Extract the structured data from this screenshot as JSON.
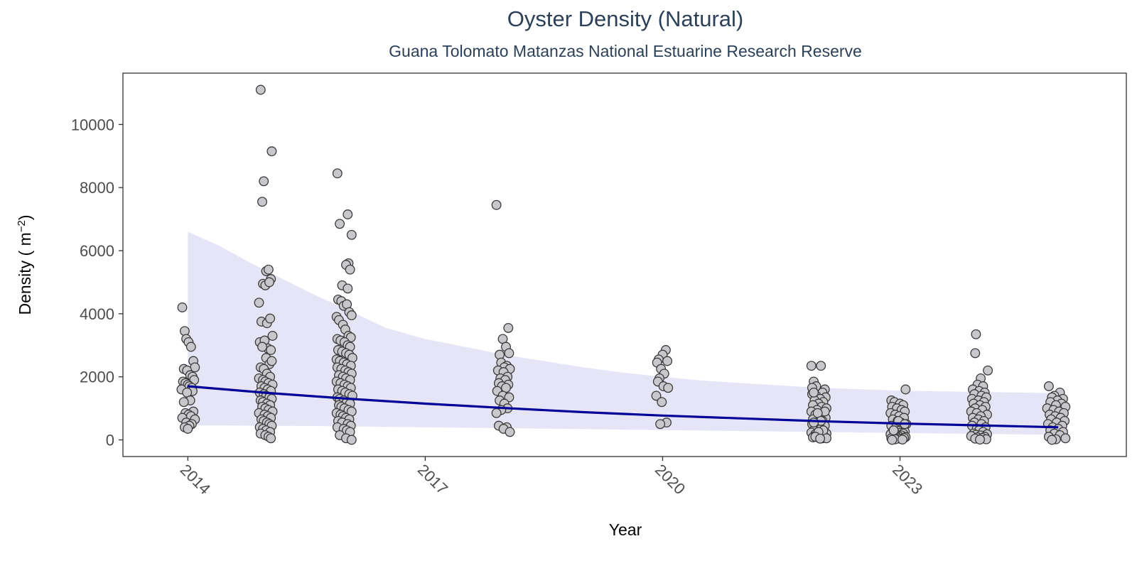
{
  "chart_data": {
    "type": "scatter",
    "title": "Oyster Density (Natural)",
    "subtitle": "Guana Tolomato Matanzas National Estuarine Research Reserve",
    "xlabel": "Year",
    "ylabel_main": "Density ( m",
    "ylabel_sup": "−2",
    "ylabel_close": ")",
    "xlim": [
      2013.18,
      2025.86
    ],
    "ylim": [
      -528,
      11630
    ],
    "x_ticks": [
      2014,
      2017,
      2020,
      2023
    ],
    "x_tick_labels": [
      "2014",
      "2017",
      "2020",
      "2023"
    ],
    "y_ticks": [
      0,
      2000,
      4000,
      6000,
      8000,
      10000
    ],
    "y_tick_labels": [
      "0",
      "2000",
      "4000",
      "6000",
      "8000",
      "10000"
    ],
    "grid": false,
    "colors": {
      "point_fill": "#c8c8cc",
      "point_stroke": "#3a3a3a",
      "trend_line": "#000099",
      "ribbon": "#e5e5f7",
      "title": "#2c4159",
      "panel_border": "#333333"
    },
    "trend": {
      "x": [
        2014,
        2015,
        2016,
        2017,
        2018,
        2019,
        2020,
        2021,
        2022,
        2023,
        2024,
        2025
      ],
      "y": [
        1700,
        1490,
        1310,
        1150,
        1010,
        880,
        770,
        680,
        590,
        520,
        460,
        400
      ]
    },
    "ribbon": {
      "x": [
        2014,
        2014.4,
        2014.8,
        2015.2,
        2015.6,
        2016,
        2016.5,
        2017,
        2017.5,
        2018,
        2018.5,
        2019,
        2019.5,
        2020,
        2020.5,
        2021,
        2022,
        2023,
        2024,
        2025
      ],
      "upper": [
        6600,
        6150,
        5600,
        5100,
        4600,
        4150,
        3550,
        3200,
        2950,
        2700,
        2500,
        2300,
        2130,
        2000,
        1880,
        1800,
        1650,
        1560,
        1520,
        1480
      ],
      "lower": [
        460,
        455,
        450,
        445,
        440,
        430,
        415,
        400,
        385,
        370,
        355,
        340,
        325,
        310,
        295,
        280,
        250,
        220,
        190,
        160
      ]
    },
    "series": [
      {
        "x": [
          2013.93,
          2013.96,
          2013.98,
          2014.01,
          2014.04,
          2014.07,
          2014.09,
          2013.95,
          2013.99,
          2014.03,
          2014.06,
          2014.08,
          2013.94,
          2013.97,
          2014.0,
          2014.02,
          2014.05,
          2013.92,
          2014.06,
          2013.99,
          2014.03,
          2013.95,
          2014.07,
          2013.97,
          2014.01,
          2014.04,
          2013.93,
          2014.09,
          2013.98,
          2014.05,
          2014.02,
          2013.96,
          2014.0
        ],
        "y": [
          4200,
          3450,
          3200,
          3100,
          2950,
          2500,
          2300,
          2250,
          2200,
          2050,
          2000,
          1900,
          1850,
          1800,
          1750,
          1700,
          1650,
          1600,
          1550,
          1500,
          1250,
          1200,
          900,
          850,
          800,
          750,
          700,
          650,
          550,
          500,
          450,
          400,
          350
        ]
      },
      {
        "x": [
          2014.92,
          2014.96,
          2015.06,
          2014.94,
          2014.99,
          2015.02,
          2015.05,
          2014.95,
          2014.98,
          2015.03,
          2014.9,
          2014.93,
          2015.0,
          2015.04,
          2015.07,
          2014.91,
          2014.97,
          2015.01,
          2015.05,
          2014.94,
          2014.99,
          2015.03,
          2015.06,
          2014.92,
          2014.96,
          2015.0,
          2015.04,
          2014.9,
          2014.95,
          2014.98,
          2015.02,
          2015.07,
          2014.93,
          2014.97,
          2015.01,
          2015.05,
          2014.91,
          2014.96,
          2014.99,
          2015.03,
          2015.06,
          2014.92,
          2014.95,
          2015.0,
          2015.04,
          2014.94,
          2014.98,
          2015.02,
          2015.07,
          2014.9,
          2014.97,
          2015.01,
          2015.05,
          2014.93,
          2014.96,
          2015.0,
          2015.03,
          2015.06,
          2014.91,
          2014.95,
          2014.99,
          2015.04,
          2014.92,
          2014.98,
          2015.02,
          2015.05
        ],
        "y": [
          11100,
          8200,
          9150,
          7550,
          5350,
          5400,
          5100,
          4950,
          4900,
          5000,
          4350,
          3750,
          3700,
          3850,
          3300,
          3100,
          3150,
          2900,
          2850,
          2950,
          2600,
          2400,
          2500,
          2300,
          2250,
          2100,
          2000,
          1950,
          1900,
          1850,
          1800,
          1750,
          1700,
          1650,
          1600,
          1550,
          1500,
          1450,
          1400,
          1350,
          1300,
          1250,
          1200,
          1150,
          1100,
          1050,
          1000,
          950,
          900,
          850,
          800,
          750,
          700,
          650,
          600,
          550,
          500,
          450,
          400,
          350,
          300,
          250,
          200,
          150,
          100,
          50
        ]
      },
      {
        "x": [
          2015.89,
          2015.92,
          2016.02,
          2016.07,
          2016.03,
          2016.0,
          2016.05,
          2015.95,
          2016.02,
          2015.9,
          2015.94,
          2015.97,
          2016.01,
          2016.04,
          2016.07,
          2015.88,
          2015.91,
          2015.96,
          2015.99,
          2016.03,
          2016.06,
          2015.89,
          2015.93,
          2015.98,
          2016.02,
          2016.05,
          2015.9,
          2015.95,
          2016.0,
          2016.04,
          2016.08,
          2015.88,
          2015.92,
          2015.97,
          2016.01,
          2016.06,
          2015.89,
          2015.94,
          2015.99,
          2016.03,
          2016.07,
          2015.91,
          2015.96,
          2016.0,
          2016.05,
          2015.88,
          2015.93,
          2015.98,
          2016.02,
          2016.06,
          2015.9,
          2015.95,
          2015.99,
          2016.04,
          2016.08,
          2015.89,
          2015.92,
          2015.97,
          2016.01,
          2016.05,
          2015.91,
          2015.94,
          2015.98,
          2016.03,
          2016.07,
          2015.88,
          2015.93,
          2015.96,
          2016.0,
          2016.04,
          2015.9,
          2015.95,
          2016.02,
          2016.06,
          2015.89,
          2015.97,
          2016.01,
          2016.05,
          2015.92,
          2016.0,
          2016.07
        ],
        "y": [
          8450,
          6850,
          7150,
          6500,
          5600,
          5550,
          5400,
          4900,
          4800,
          4450,
          4400,
          4250,
          4300,
          4050,
          3950,
          3900,
          3800,
          3650,
          3500,
          3300,
          3250,
          3200,
          3150,
          3100,
          3000,
          2950,
          2850,
          2800,
          2750,
          2700,
          2600,
          2550,
          2500,
          2450,
          2400,
          2350,
          2300,
          2250,
          2200,
          2150,
          2100,
          2050,
          2000,
          1950,
          1900,
          1850,
          1800,
          1750,
          1700,
          1650,
          1600,
          1550,
          1500,
          1450,
          1400,
          1350,
          1300,
          1250,
          1200,
          1150,
          1100,
          1050,
          1000,
          950,
          900,
          850,
          800,
          750,
          700,
          650,
          600,
          550,
          500,
          450,
          400,
          350,
          300,
          250,
          150,
          50,
          0
        ]
      },
      {
        "x": [
          2017.9,
          2018.05,
          2017.98,
          2018.02,
          2018.06,
          2017.94,
          2017.96,
          2018.03,
          2018.0,
          2018.07,
          2017.92,
          2017.99,
          2018.04,
          2017.95,
          2018.01,
          2017.93,
          2018.05,
          2017.97,
          2018.02,
          2017.91,
          2017.98,
          2018.06,
          2017.94,
          2018.0,
          2018.04,
          2017.96,
          2017.9,
          2017.93,
          2018.03,
          2017.99,
          2018.07
        ],
        "y": [
          7450,
          3550,
          3200,
          2950,
          2750,
          2700,
          2450,
          2350,
          2300,
          2250,
          2200,
          2150,
          2000,
          1950,
          1900,
          1800,
          1750,
          1700,
          1650,
          1550,
          1400,
          1350,
          1250,
          1150,
          1000,
          950,
          850,
          450,
          400,
          350,
          250
        ]
      },
      {
        "x": [
          2020.04,
          2020.0,
          2019.95,
          2020.06,
          2019.93,
          2019.98,
          2020.02,
          2019.96,
          2019.94,
          2020.01,
          2020.07,
          2019.92,
          2019.99,
          2020.05,
          2019.97
        ],
        "y": [
          2850,
          2700,
          2550,
          2500,
          2450,
          2250,
          2100,
          1950,
          1850,
          1700,
          1650,
          1400,
          1200,
          550,
          500
        ]
      },
      {
        "x": [
          2021.88,
          2022.0,
          2021.91,
          2022.05,
          2021.96,
          2022.02,
          2021.89,
          2021.94,
          2022.06,
          2021.99,
          2021.92,
          2022.03,
          2021.97,
          2021.9,
          2022.01,
          2022.07,
          2021.95,
          2021.88,
          2022.04,
          2021.93,
          2021.98,
          2022.06,
          2021.9,
          2022.02,
          2021.96,
          2021.89,
          2022.05,
          2021.94,
          2022.0,
          2021.91,
          2022.03,
          2021.97,
          2021.88,
          2022.07,
          2021.93,
          2022.01,
          2021.99,
          2021.92,
          2022.04,
          2021.95,
          2021.9,
          2022.06,
          2021.98,
          2022.02,
          2021.94,
          2021.89,
          2022.05,
          2021.96,
          2022.0,
          2021.91,
          2022.03,
          2021.97,
          2021.93,
          2022.07,
          2021.99
        ],
        "y": [
          2350,
          2350,
          1850,
          1600,
          1550,
          1500,
          1450,
          1400,
          1350,
          1300,
          1250,
          1200,
          1150,
          1100,
          1050,
          1000,
          950,
          900,
          850,
          800,
          750,
          700,
          650,
          600,
          550,
          500,
          450,
          400,
          350,
          300,
          280,
          250,
          230,
          200,
          180,
          150,
          130,
          110,
          100,
          90,
          80,
          70,
          60,
          50,
          1700,
          1650,
          900,
          850,
          600,
          550,
          300,
          250,
          100,
          50,
          40
        ]
      },
      {
        "x": [
          2023.07,
          2021.91,
          2022.89,
          2022.93,
          2023.0,
          2023.04,
          2022.9,
          2022.96,
          2023.02,
          2023.06,
          2022.88,
          2022.94,
          2022.99,
          2023.05,
          2022.91,
          2022.97,
          2023.01,
          2023.08,
          2022.89,
          2022.95,
          2023.03,
          2022.92,
          2022.98,
          2023.06,
          2022.9,
          2023.0,
          2023.04,
          2022.88,
          2022.96,
          2023.02,
          2022.93,
          2022.99,
          2023.07,
          2022.91,
          2022.97,
          2023.05,
          2022.89,
          2022.95,
          2023.01,
          2022.94,
          2023.03,
          2022.9,
          2022.98,
          2023.06,
          2022.92
        ],
        "y": [
          1600,
          1500,
          1250,
          1200,
          1150,
          1100,
          1050,
          1000,
          950,
          900,
          850,
          800,
          750,
          700,
          650,
          600,
          550,
          500,
          450,
          400,
          350,
          300,
          280,
          260,
          240,
          220,
          200,
          180,
          160,
          140,
          120,
          100,
          90,
          80,
          70,
          60,
          50,
          40,
          30,
          20,
          10,
          0,
          600,
          500,
          300
        ]
      },
      {
        "x": [
          2023.96,
          2023.95,
          2024.02,
          2024.11,
          2023.98,
          2024.05,
          2023.92,
          2024.0,
          2024.07,
          2023.94,
          2024.03,
          2024.09,
          2023.91,
          2023.99,
          2024.06,
          2023.93,
          2024.01,
          2024.08,
          2023.95,
          2024.04,
          2023.9,
          2023.97,
          2024.1,
          2024.02,
          2023.92,
          2023.99,
          2024.06,
          2023.94,
          2024.03,
          2023.91,
          2024.08,
          2023.97,
          2024.0,
          2024.05,
          2023.93,
          2024.1,
          2023.96,
          2024.02,
          2023.9,
          2024.07,
          2023.98,
          2024.04,
          2023.95,
          2024.09,
          2024.01
        ],
        "y": [
          3350,
          2750,
          1950,
          2200,
          1750,
          1700,
          1600,
          1550,
          1500,
          1450,
          1400,
          1350,
          1300,
          1250,
          1200,
          1150,
          1100,
          1050,
          1000,
          950,
          900,
          850,
          800,
          750,
          700,
          650,
          600,
          550,
          500,
          450,
          400,
          350,
          300,
          250,
          200,
          180,
          160,
          140,
          120,
          100,
          80,
          60,
          40,
          20,
          10
        ]
      },
      {
        "x": [
          2024.88,
          2025.02,
          2024.95,
          2024.92,
          2025.06,
          2024.99,
          2024.9,
          2025.04,
          2024.97,
          2025.09,
          2024.86,
          2024.94,
          2025.01,
          2025.07,
          2024.89,
          2024.96,
          2025.03,
          2024.91,
          2025.08,
          2024.98,
          2024.87,
          2025.05,
          2024.93,
          2025.0,
          2024.9,
          2025.06,
          2024.95,
          2025.02,
          2024.88,
          2025.09,
          2024.97,
          2024.92
        ],
        "y": [
          1700,
          1500,
          1400,
          1350,
          1300,
          1250,
          1200,
          1150,
          1100,
          1050,
          1000,
          950,
          900,
          850,
          800,
          750,
          700,
          650,
          600,
          550,
          500,
          450,
          400,
          350,
          300,
          250,
          200,
          150,
          100,
          50,
          20,
          0
        ]
      }
    ]
  }
}
